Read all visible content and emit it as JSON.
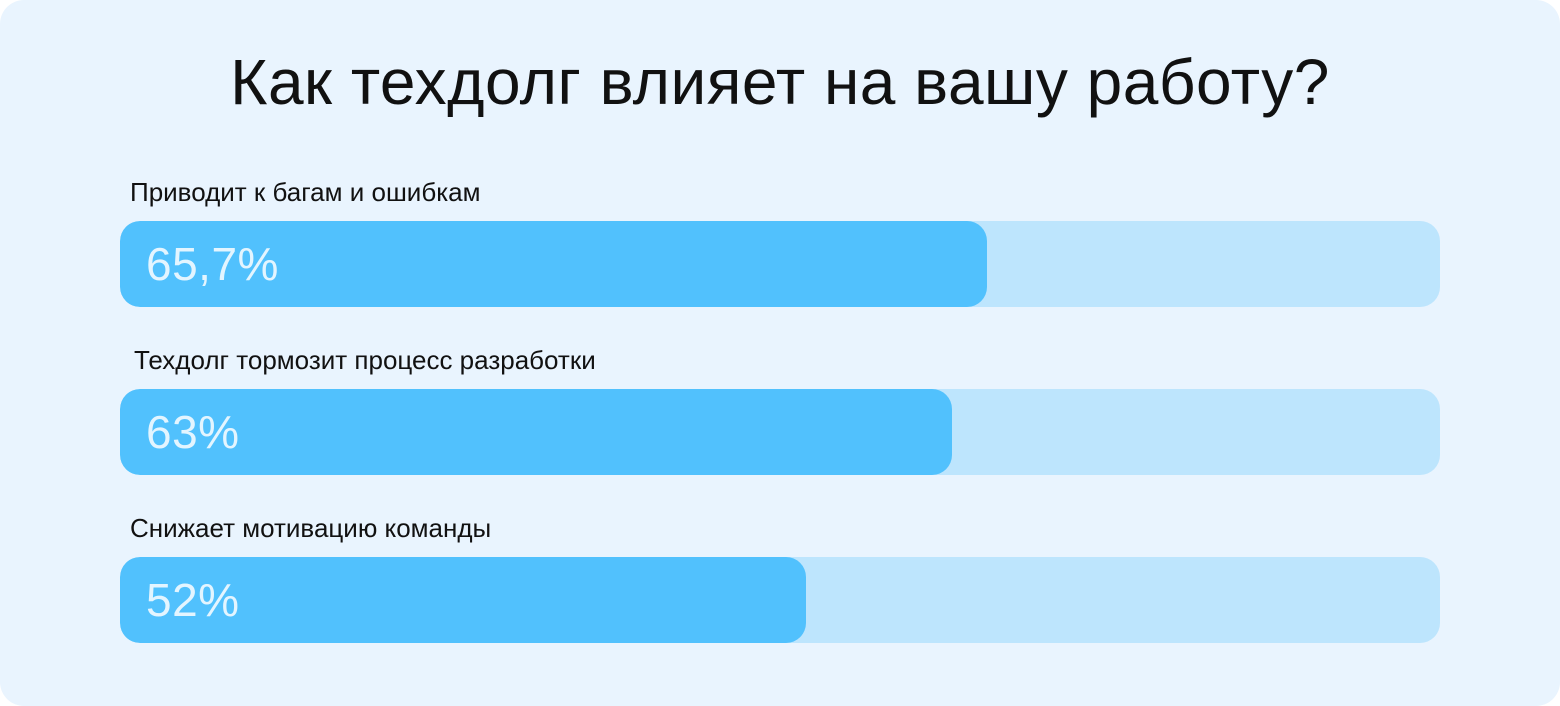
{
  "chart_data": {
    "type": "bar",
    "orientation": "horizontal",
    "title": "Как техдолг влияет на вашу работу?",
    "categories": [
      "Приводит к багам и ошибкам",
      "Техдолг тормозит процесс разработки",
      "Снижает мотивацию команды"
    ],
    "values": [
      65.7,
      63,
      52
    ],
    "value_labels": [
      "65,7%",
      "63%",
      "52%"
    ],
    "xlim": [
      0,
      100
    ],
    "grid": false,
    "legend": "none"
  },
  "colors": {
    "background": "#e9f4fe",
    "bar_fill": "#51c1fd",
    "bar_track": "#bde5fd",
    "value_text": "#e3f5ff",
    "label_text": "#111111"
  }
}
